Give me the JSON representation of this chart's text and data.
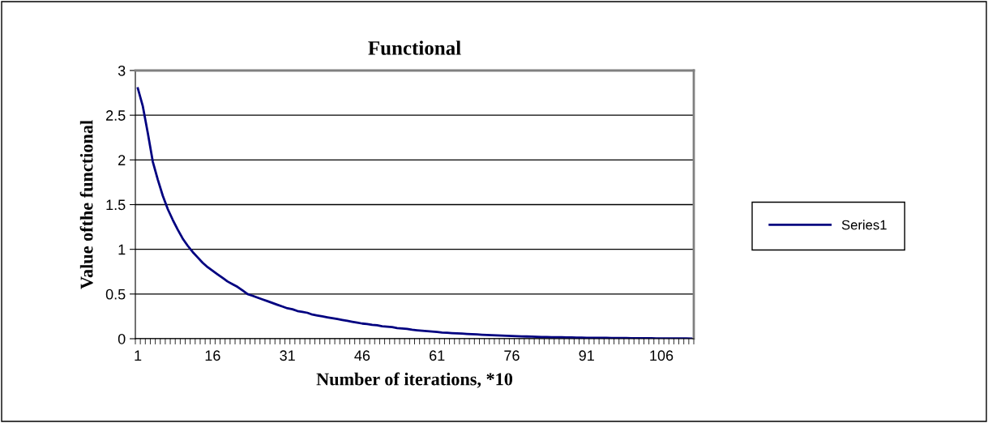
{
  "chart_data": {
    "type": "line",
    "title": "Functional",
    "xlabel": "Number of iterations, *10",
    "ylabel": "Value ofthe functional",
    "categories": [
      "1",
      null,
      null,
      null,
      null,
      null,
      null,
      null,
      null,
      null,
      null,
      null,
      null,
      null,
      null,
      "16",
      null,
      null,
      null,
      null,
      null,
      null,
      null,
      null,
      null,
      null,
      null,
      null,
      null,
      null,
      "31",
      null,
      null,
      null,
      null,
      null,
      null,
      null,
      null,
      null,
      null,
      null,
      null,
      null,
      null,
      "46",
      null,
      null,
      null,
      null,
      null,
      null,
      null,
      null,
      null,
      null,
      null,
      null,
      null,
      null,
      "61",
      null,
      null,
      null,
      null,
      null,
      null,
      null,
      null,
      null,
      null,
      null,
      null,
      null,
      null,
      "76",
      null,
      null,
      null,
      null,
      null,
      null,
      null,
      null,
      null,
      null,
      null,
      null,
      null,
      null,
      "91",
      null,
      null,
      null,
      null,
      null,
      null,
      null,
      null,
      null,
      null,
      null,
      null,
      null,
      null,
      "106",
      null,
      null,
      null,
      null,
      null,
      null
    ],
    "series": [
      {
        "name": "Series1",
        "color": "#000080",
        "values": [
          2.8,
          2.6,
          2.3,
          1.98,
          1.78,
          1.6,
          1.45,
          1.33,
          1.22,
          1.12,
          1.04,
          0.97,
          0.91,
          0.85,
          0.8,
          0.76,
          0.72,
          0.68,
          0.64,
          0.61,
          0.58,
          0.54,
          0.5,
          0.48,
          0.46,
          0.44,
          0.42,
          0.4,
          0.38,
          0.36,
          0.34,
          0.33,
          0.31,
          0.3,
          0.29,
          0.27,
          0.26,
          0.25,
          0.24,
          0.23,
          0.22,
          0.21,
          0.2,
          0.19,
          0.18,
          0.17,
          0.165,
          0.155,
          0.15,
          0.14,
          0.135,
          0.13,
          0.12,
          0.115,
          0.11,
          0.1,
          0.095,
          0.09,
          0.085,
          0.08,
          0.075,
          0.07,
          0.067,
          0.063,
          0.06,
          0.057,
          0.054,
          0.051,
          0.048,
          0.045,
          0.042,
          0.04,
          0.037,
          0.035,
          0.033,
          0.031,
          0.029,
          0.027,
          0.025,
          0.023,
          0.022,
          0.02,
          0.019,
          0.018,
          0.017,
          0.016,
          0.015,
          0.014,
          0.013,
          0.012,
          0.011,
          0.01,
          0.01,
          0.009,
          0.009,
          0.008,
          0.008,
          0.007,
          0.007,
          0.006,
          0.006,
          0.005,
          0.005,
          0.005,
          0.004,
          0.004,
          0.004,
          0.003,
          0.003,
          0.003,
          0.003,
          0.002
        ]
      }
    ],
    "ylim": [
      0,
      3
    ],
    "yticks": [
      0,
      0.5,
      1,
      1.5,
      2,
      2.5,
      3
    ],
    "grid": "y",
    "legend": "right",
    "marker": "none",
    "line_style": "solid"
  }
}
